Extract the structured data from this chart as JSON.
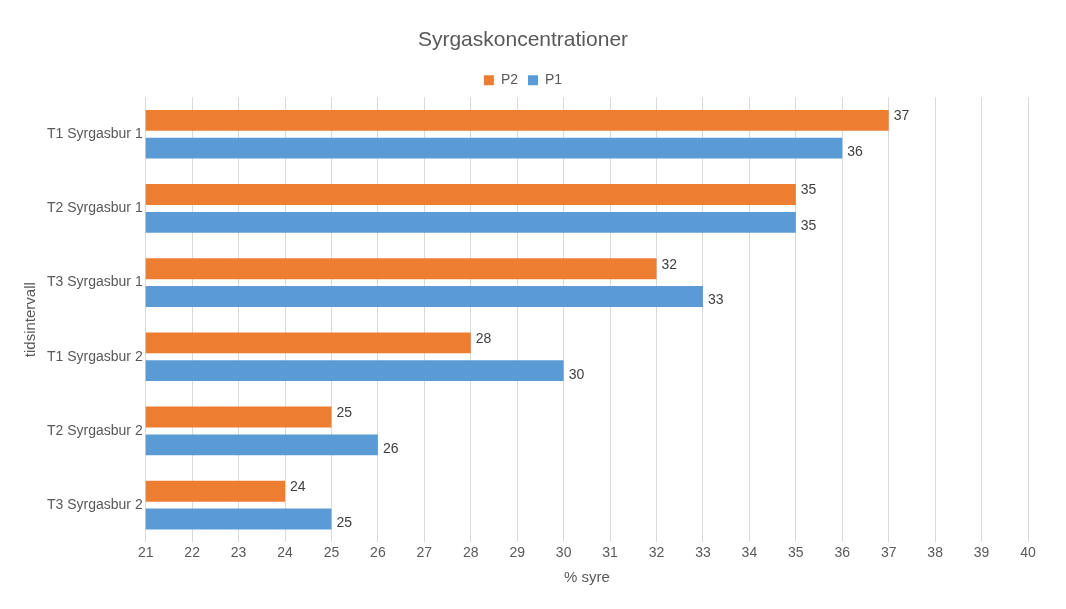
{
  "chart_data": {
    "type": "bar",
    "orientation": "horizontal",
    "title": "Syrgaskoncentrationer",
    "xlabel": "% syre",
    "ylabel": "tidsintervall",
    "categories": [
      "T1 Syrgasbur 1",
      "T2 Syrgasbur 1",
      "T3 Syrgasbur 1",
      "T1 Syrgasbur 2",
      "T2 Syrgasbur 2",
      "T3 Syrgasbur 2"
    ],
    "series": [
      {
        "name": "P2",
        "color": "#ed7d31",
        "values": [
          37,
          35,
          32,
          28,
          25,
          24
        ]
      },
      {
        "name": "P1",
        "color": "#5b9bd5",
        "values": [
          36,
          35,
          33,
          30,
          26,
          25
        ]
      }
    ],
    "xlim": [
      21,
      40
    ],
    "xticks": [
      21,
      22,
      23,
      24,
      25,
      26,
      27,
      28,
      29,
      30,
      31,
      32,
      33,
      34,
      35,
      36,
      37,
      38,
      39,
      40
    ],
    "grid": "x",
    "legend": "top",
    "data_labels": true
  }
}
